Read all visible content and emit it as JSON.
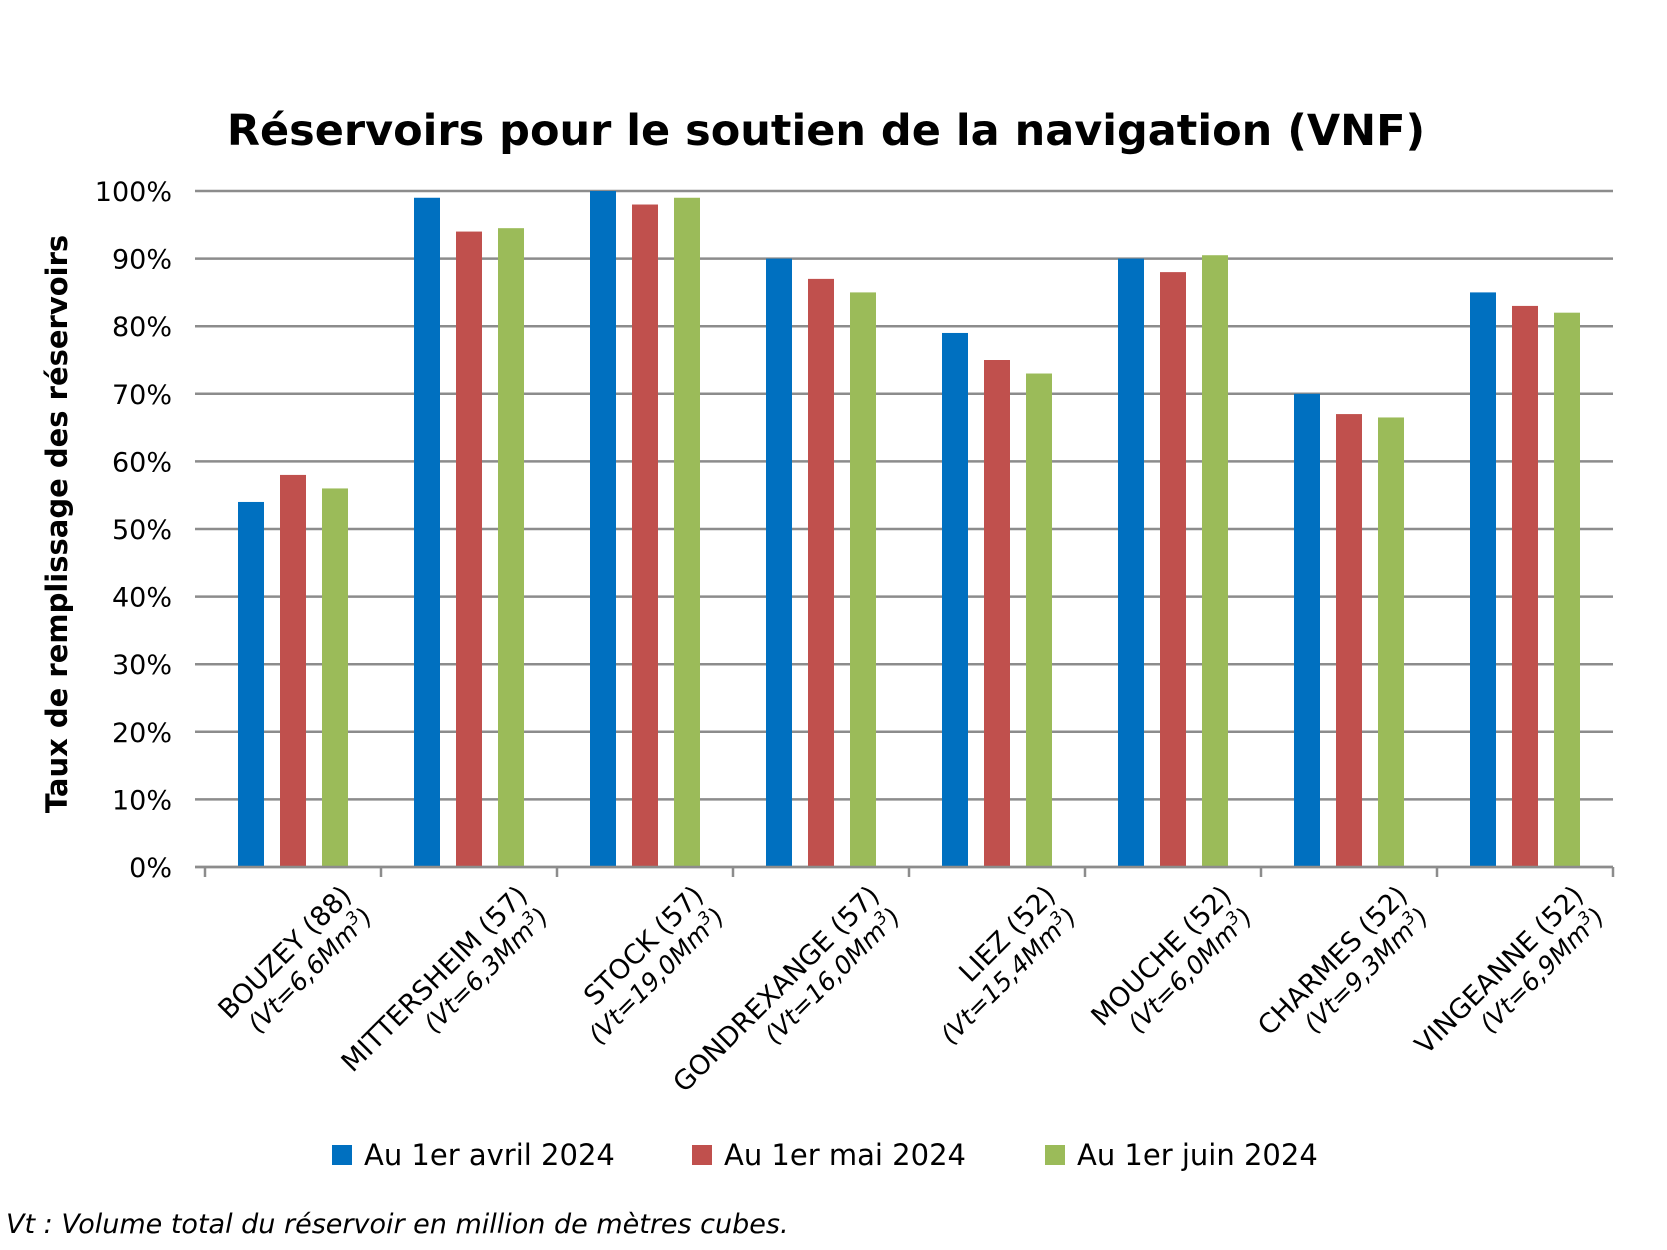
{
  "chart_data": {
    "type": "bar",
    "title": "Réservoirs pour le soutien de la navigation (VNF)",
    "ylabel": "Taux de remplissage des réservoirs",
    "xlabel": "",
    "ylim": [
      0,
      100
    ],
    "yticks": [
      "0%",
      "10%",
      "20%",
      "30%",
      "40%",
      "50%",
      "60%",
      "70%",
      "80%",
      "90%",
      "100%"
    ],
    "grid": true,
    "legend_position": "bottom",
    "categories": [
      {
        "name": "BOUZEY (88)",
        "volume": "(Vt=6,6Mm",
        "sup": "3",
        "close": ")"
      },
      {
        "name": "MITTERSHEIM (57)",
        "volume": "(Vt=6,3Mm",
        "sup": "3",
        "close": ")"
      },
      {
        "name": "STOCK (57)",
        "volume": "(Vt=19,0Mm",
        "sup": "3",
        "close": ")"
      },
      {
        "name": "GONDREXANGE (57)",
        "volume": "(Vt=16,0Mm",
        "sup": "3",
        "close": ")"
      },
      {
        "name": "LIEZ (52)",
        "volume": "(Vt=15,4Mm",
        "sup": "3",
        "close": ")"
      },
      {
        "name": "MOUCHE (52)",
        "volume": "(Vt=6,0Mm",
        "sup": "3",
        "close": ")"
      },
      {
        "name": "CHARMES (52)",
        "volume": "(Vt=9,3Mm",
        "sup": "3",
        "close": ")"
      },
      {
        "name": "VINGEANNE (52)",
        "volume": "(Vt=6,9Mm",
        "sup": "3",
        "close": ")"
      }
    ],
    "series": [
      {
        "name": "Au 1er avril 2024",
        "color": "#0070c0",
        "values": [
          54,
          99,
          100,
          90,
          79,
          90,
          70,
          85
        ]
      },
      {
        "name": "Au 1er mai 2024",
        "color": "#c0504d",
        "values": [
          58,
          94,
          98,
          87,
          75,
          88,
          67,
          83
        ]
      },
      {
        "name": "Au 1er juin 2024",
        "color": "#9bbb59",
        "values": [
          56,
          94.5,
          99,
          85,
          73,
          90.5,
          66.5,
          82
        ]
      }
    ],
    "footnote": "Vt : Volume total du réservoir en million de mètres cubes."
  }
}
